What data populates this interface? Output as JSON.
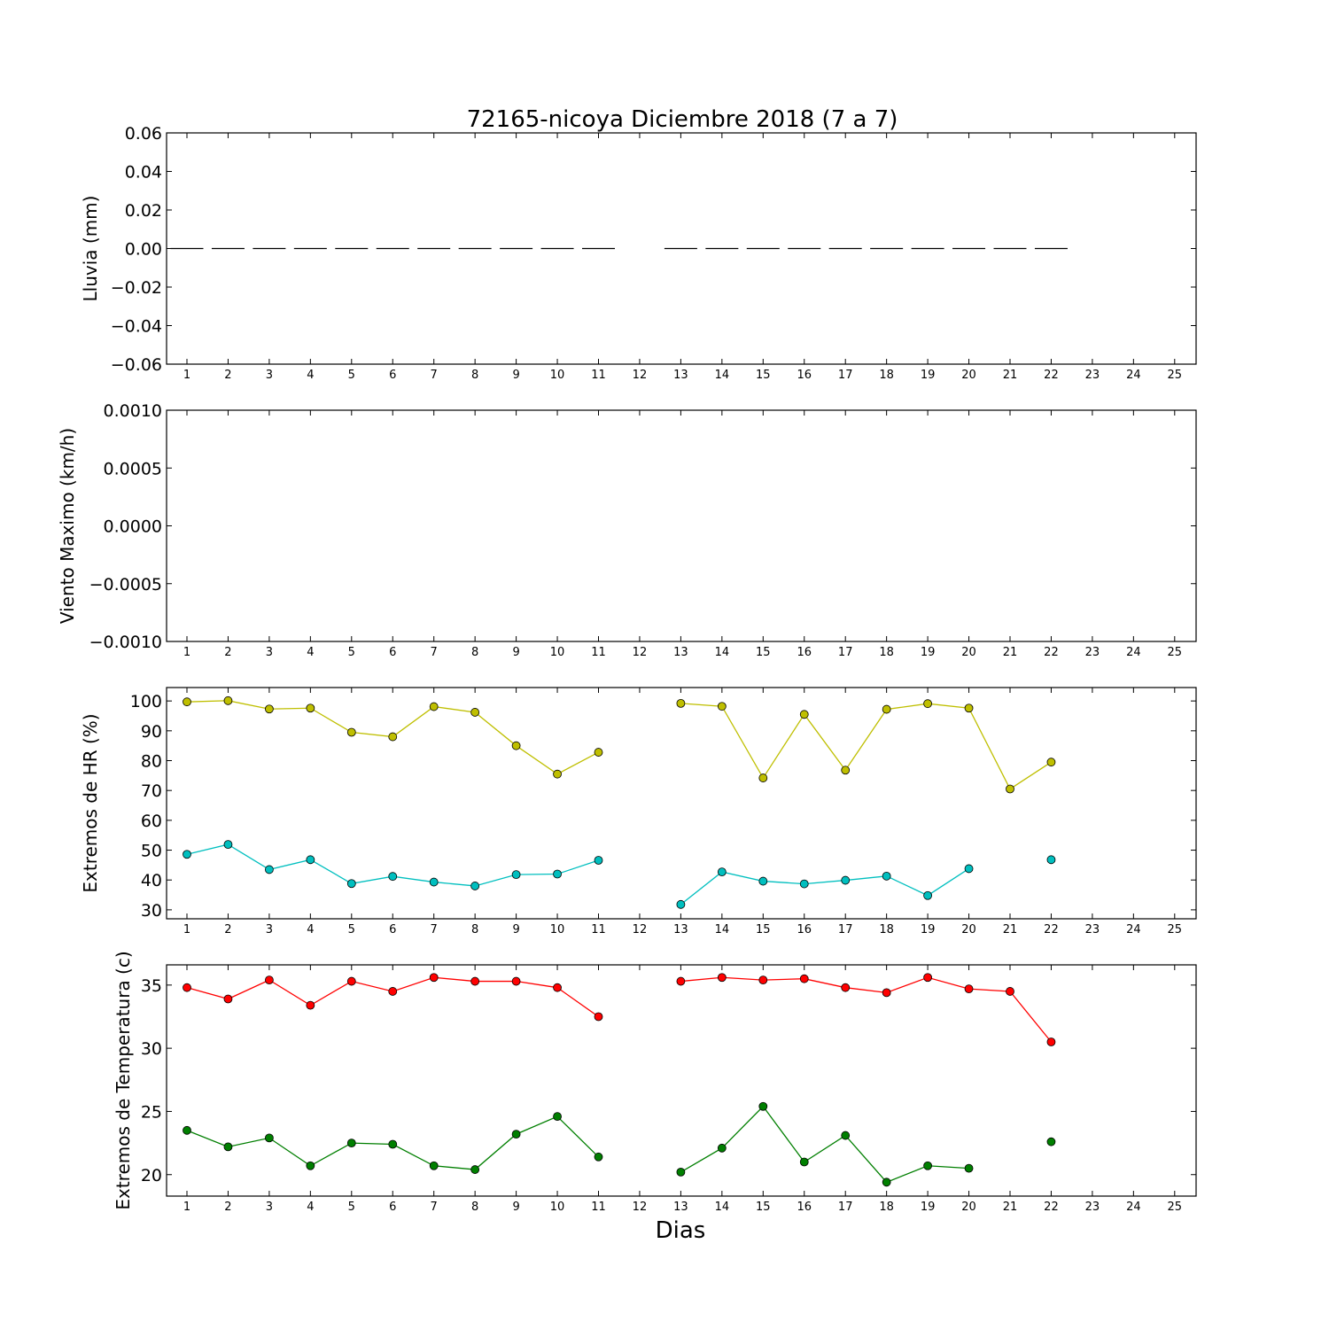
{
  "chart_data": [
    {
      "type": "line",
      "title": "72165-nicoya Diciembre 2018  (7 a 7)",
      "ylabel": "Lluvia (mm)",
      "xlabel": "",
      "ylim": [
        -0.06,
        0.06
      ],
      "yticks": [
        0.06,
        0.04,
        0.02,
        0.0,
        -0.02,
        -0.04,
        -0.06
      ],
      "ytick_labels": [
        "0.06",
        "0.04",
        "0.02",
        "0.00",
        "−0.02",
        "−0.04",
        "−0.06"
      ],
      "x_ticks": [
        "1",
        "2",
        "3",
        "4",
        "5",
        "6",
        "7",
        "8",
        "9",
        "10",
        "11",
        "12",
        "13",
        "14",
        "15",
        "16",
        "17",
        "18",
        "19",
        "20",
        "21",
        "22",
        "23",
        "24",
        "25"
      ],
      "style": "bar-step",
      "series": [
        {
          "color": "#000000",
          "x": [
            1,
            2,
            3,
            4,
            5,
            6,
            7,
            8,
            9,
            10,
            11,
            13,
            14,
            15,
            16,
            17,
            18,
            19,
            20,
            21,
            22
          ],
          "values": [
            0,
            0,
            0,
            0,
            0,
            0,
            0,
            0,
            0,
            0,
            0,
            0,
            0,
            0,
            0,
            0,
            0,
            0,
            0,
            0,
            0
          ]
        }
      ]
    },
    {
      "type": "line",
      "title": "",
      "ylabel": "Viento Maximo (km/h)",
      "xlabel": "",
      "ylim": [
        -0.001,
        0.001
      ],
      "yticks": [
        0.001,
        0.0005,
        0.0,
        -0.0005,
        -0.001
      ],
      "ytick_labels": [
        "0.0010",
        "0.0005",
        "0.0000",
        "−0.0005",
        "−0.0010"
      ],
      "x_ticks": [
        "1",
        "2",
        "3",
        "4",
        "5",
        "6",
        "7",
        "8",
        "9",
        "10",
        "11",
        "12",
        "13",
        "14",
        "15",
        "16",
        "17",
        "18",
        "19",
        "20",
        "21",
        "22",
        "23",
        "24",
        "25"
      ],
      "series": []
    },
    {
      "type": "line",
      "title": "",
      "ylabel": "Extremos de HR (%)",
      "xlabel": "",
      "ylim": [
        27,
        104.5
      ],
      "yticks": [
        100,
        90,
        80,
        70,
        60,
        50,
        40,
        30
      ],
      "ytick_labels": [
        "100",
        "90",
        "80",
        "70",
        "60",
        "50",
        "40",
        "30"
      ],
      "x_ticks": [
        "1",
        "2",
        "3",
        "4",
        "5",
        "6",
        "7",
        "8",
        "9",
        "10",
        "11",
        "12",
        "13",
        "14",
        "15",
        "16",
        "17",
        "18",
        "19",
        "20",
        "21",
        "22",
        "23",
        "24",
        "25"
      ],
      "series": [
        {
          "color": "#bfbf00",
          "x": [
            1,
            2,
            3,
            4,
            5,
            6,
            7,
            8,
            9,
            10,
            11,
            12,
            13,
            14,
            15,
            16,
            17,
            18,
            19,
            20,
            21,
            22
          ],
          "values": [
            99.7,
            100.1,
            97.3,
            97.6,
            89.5,
            88.0,
            98.1,
            96.2,
            85.0,
            75.5,
            82.8,
            null,
            99.2,
            98.2,
            74.2,
            95.5,
            76.8,
            97.2,
            99.1,
            97.6,
            70.5,
            79.5
          ]
        },
        {
          "color": "#00bfbf",
          "x": [
            1,
            2,
            3,
            4,
            5,
            6,
            7,
            8,
            9,
            10,
            11,
            12,
            13,
            14,
            15,
            16,
            17,
            18,
            19,
            20,
            21,
            22
          ],
          "values": [
            48.6,
            51.9,
            43.5,
            46.8,
            38.8,
            41.2,
            39.3,
            38.0,
            41.8,
            42.0,
            46.6,
            null,
            31.8,
            42.7,
            39.6,
            38.7,
            39.9,
            41.3,
            34.8,
            43.8,
            null,
            46.8
          ]
        }
      ]
    },
    {
      "type": "line",
      "title": "",
      "ylabel": "Extremos de Temperatura (c)",
      "xlabel": "Dias",
      "ylim": [
        18.3,
        36.6
      ],
      "yticks": [
        35,
        30,
        25,
        20
      ],
      "ytick_labels": [
        "35",
        "30",
        "25",
        "20"
      ],
      "x_ticks": [
        "1",
        "2",
        "3",
        "4",
        "5",
        "6",
        "7",
        "8",
        "9",
        "10",
        "11",
        "12",
        "13",
        "14",
        "15",
        "16",
        "17",
        "18",
        "19",
        "20",
        "21",
        "22",
        "23",
        "24",
        "25"
      ],
      "series": [
        {
          "color": "#ff0000",
          "x": [
            1,
            2,
            3,
            4,
            5,
            6,
            7,
            8,
            9,
            10,
            11,
            12,
            13,
            14,
            15,
            16,
            17,
            18,
            19,
            20,
            21,
            22
          ],
          "values": [
            34.8,
            33.9,
            35.4,
            33.4,
            35.3,
            34.5,
            35.6,
            35.3,
            35.3,
            34.8,
            32.5,
            null,
            35.3,
            35.6,
            35.4,
            35.5,
            34.8,
            34.4,
            35.6,
            34.7,
            34.5,
            30.5
          ]
        },
        {
          "color": "#007f00",
          "x": [
            1,
            2,
            3,
            4,
            5,
            6,
            7,
            8,
            9,
            10,
            11,
            12,
            13,
            14,
            15,
            16,
            17,
            18,
            19,
            20,
            21,
            22
          ],
          "values": [
            23.5,
            22.2,
            22.9,
            20.7,
            22.5,
            22.4,
            20.7,
            20.4,
            23.2,
            24.6,
            21.4,
            null,
            20.2,
            22.1,
            25.4,
            21.0,
            23.1,
            19.4,
            20.7,
            20.5,
            null,
            22.6
          ]
        }
      ]
    }
  ]
}
